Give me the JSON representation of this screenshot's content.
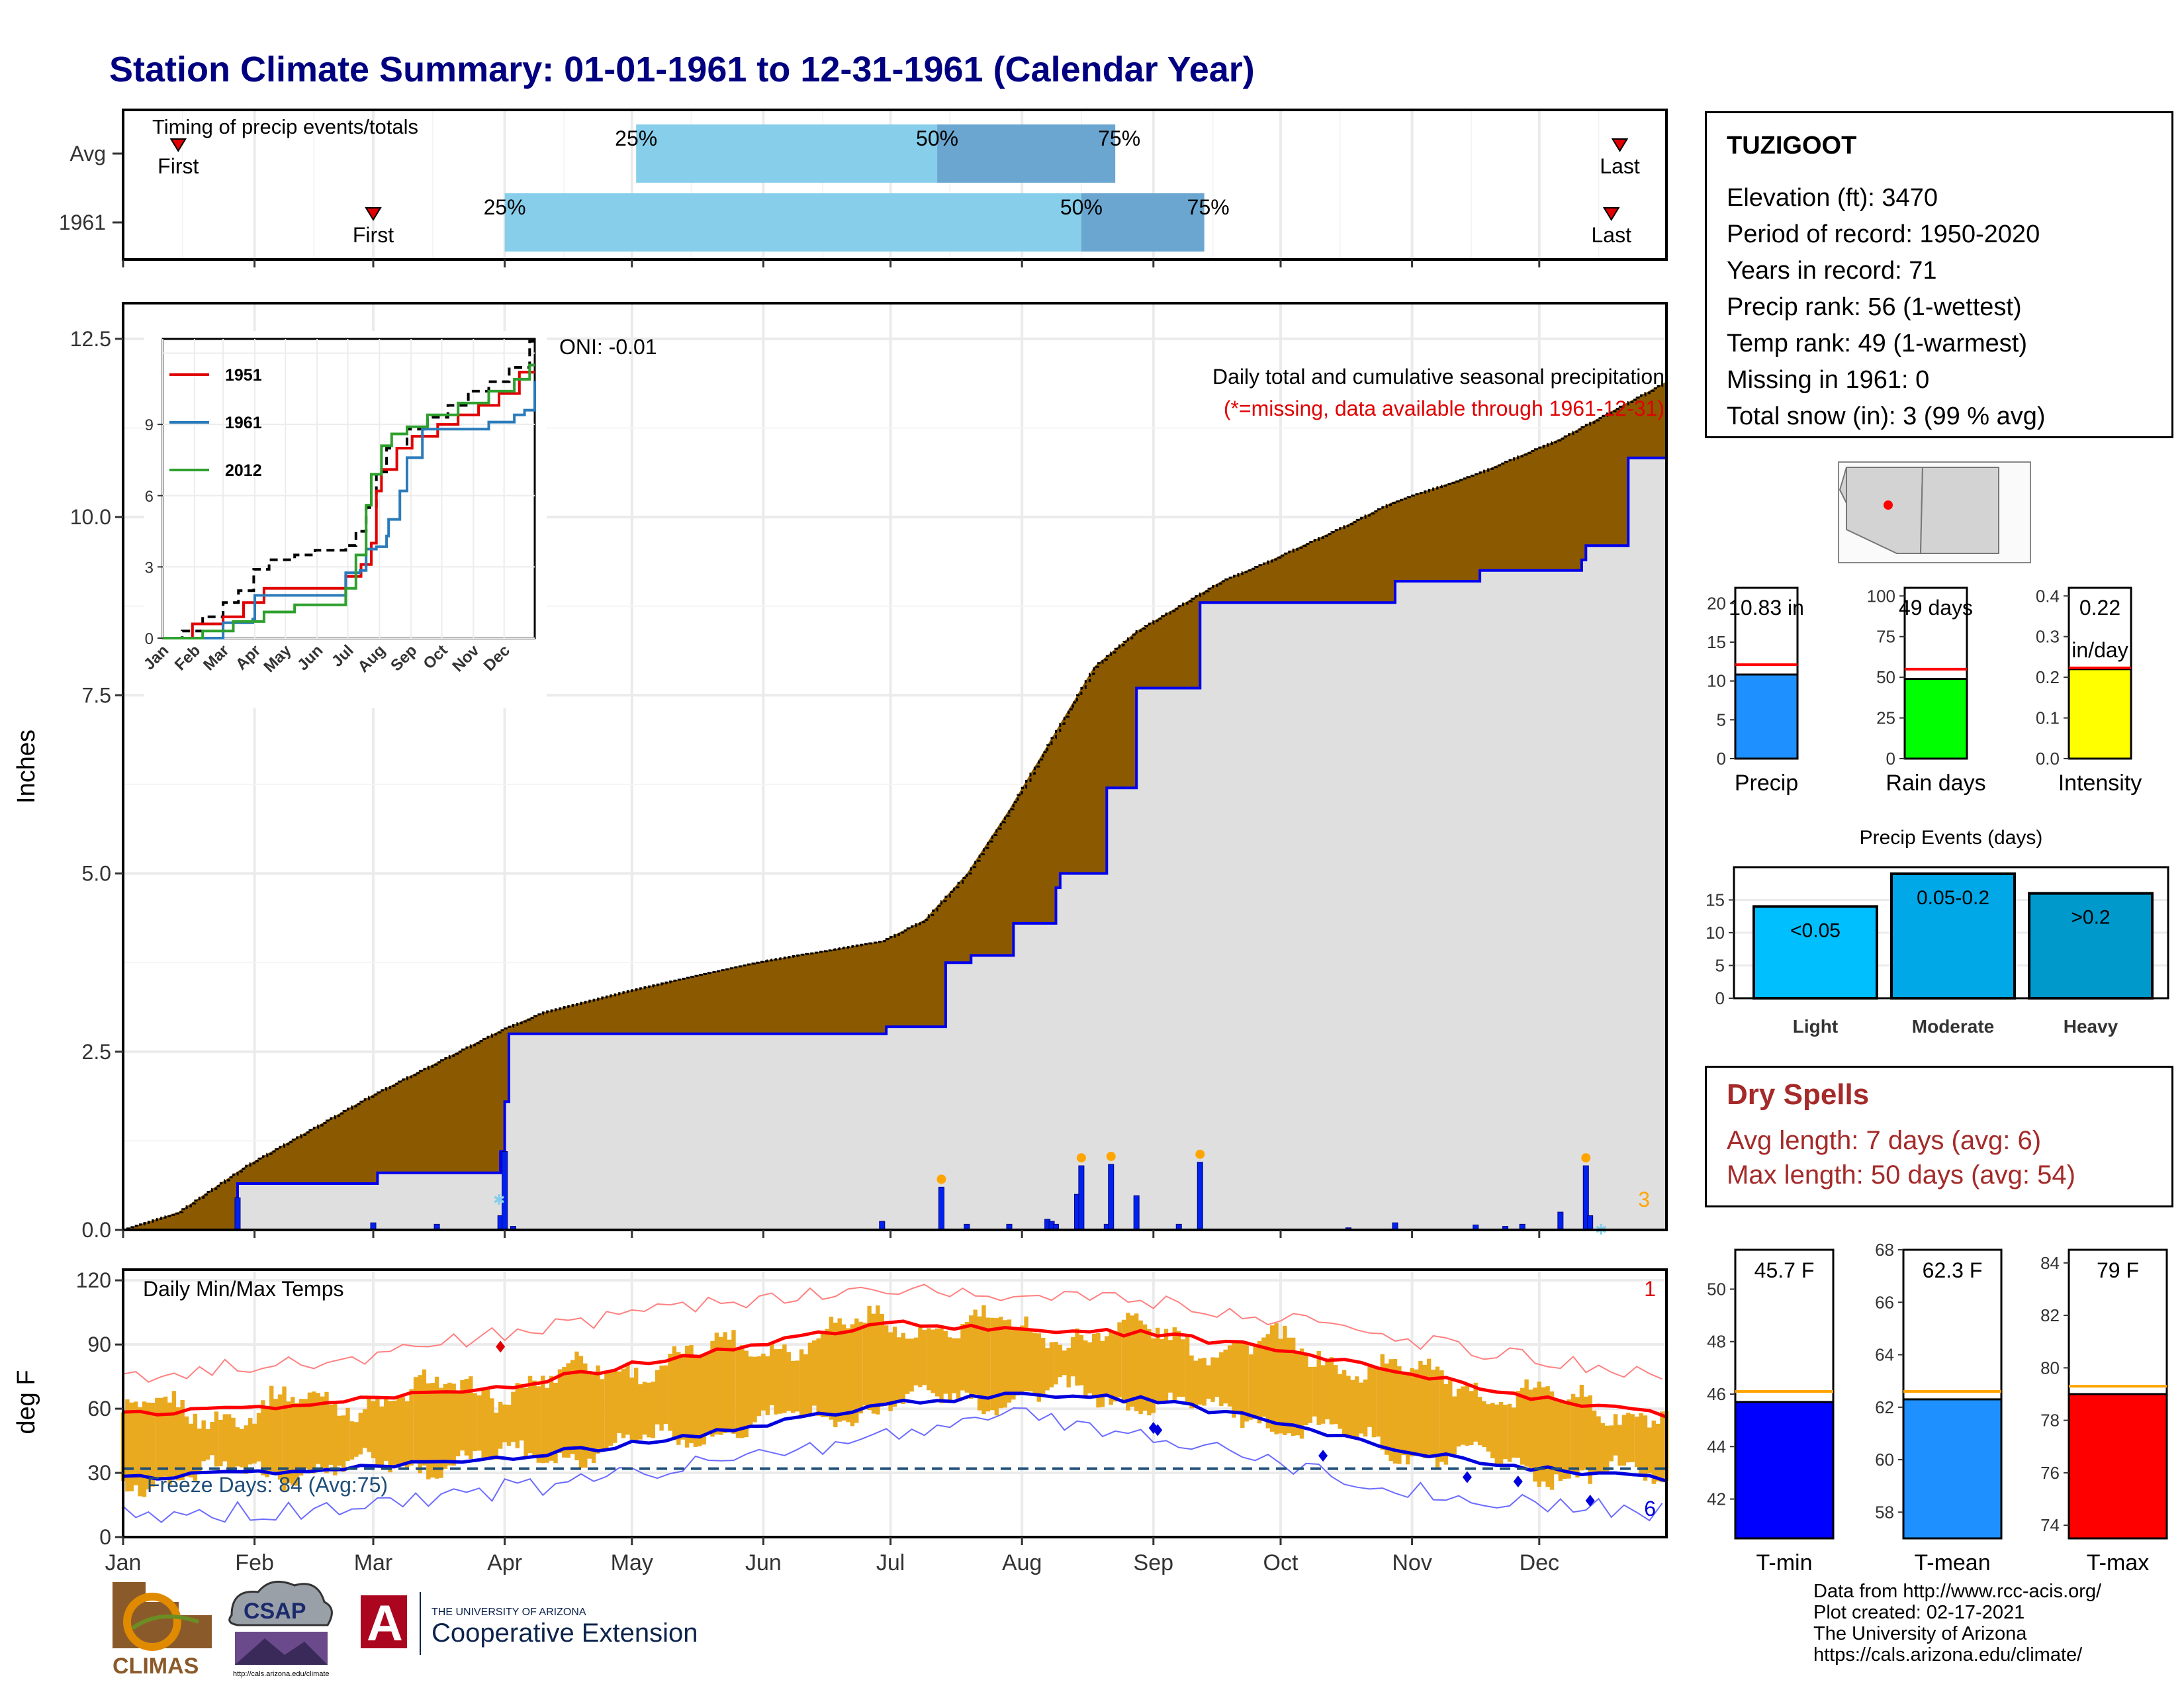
{
  "title": "Station Climate Summary: 01-01-1961 to 12-31-1961 (Calendar Year)",
  "timing": {
    "label": "Timing of precip events/totals",
    "rows": [
      {
        "label": "Avg",
        "first_day": 14,
        "p25_day": 122,
        "p50_day": 193,
        "p75_day": 235,
        "last_day": 354
      },
      {
        "label": "1961",
        "first_day": 60,
        "p25_day": 91,
        "p50_day": 227,
        "p75_day": 256,
        "last_day": 352
      }
    ],
    "text": {
      "first": "First",
      "last": "Last",
      "p25": "25%",
      "p50": "50%",
      "p75": "75%"
    }
  },
  "info": {
    "station": "TUZIGOOT",
    "lines": [
      "Elevation (ft): 3470",
      "Period of record: 1950-2020",
      "Years in record: 71",
      "Precip rank: 56 (1-wettest)",
      "Temp rank: 49 (1-warmest)",
      "Missing in 1961: 0",
      "Total snow (in): 3 (99 % avg)"
    ]
  },
  "precip_chart": {
    "ylabel": "Inches",
    "annotation1": "Daily total and cumulative seasonal precipitation",
    "annotation2": "(*=missing, data available through 1961-12-31)",
    "oni": "ONI: -0.01",
    "snow_count": "3",
    "yticks": [
      "0.0",
      "2.5",
      "5.0",
      "7.5",
      "10.0",
      "12.5"
    ]
  },
  "inset": {
    "xticks": [
      "Jan",
      "Feb",
      "Mar",
      "Apr",
      "May",
      "Jun",
      "Jul",
      "Aug",
      "Sep",
      "Oct",
      "Nov",
      "Dec"
    ],
    "yticks": [
      "0",
      "3",
      "6",
      "9"
    ],
    "legend": [
      "1951",
      "1961",
      "2012"
    ]
  },
  "months": [
    "Jan",
    "Feb",
    "Mar",
    "Apr",
    "May",
    "Jun",
    "Jul",
    "Aug",
    "Sep",
    "Oct",
    "Nov",
    "Dec"
  ],
  "temp_chart": {
    "ylabel": "deg F",
    "label": "Daily Min/Max Temps",
    "freeze": "Freeze Days: 84 (Avg:75)",
    "red_count": "1",
    "blue_count": "6",
    "yticks": [
      "0",
      "30",
      "60",
      "90",
      "120"
    ]
  },
  "bars_small": [
    {
      "name": "Precip",
      "label": "10.83 in",
      "label2": "",
      "value": 10.83,
      "avg": 12.1,
      "max": 22,
      "color": "#1e90ff",
      "ticks": [
        "0",
        "5",
        "10",
        "15",
        "20"
      ]
    },
    {
      "name": "Rain days",
      "label": "49 days",
      "label2": "",
      "value": 49,
      "avg": 55,
      "max": 105,
      "color": "#00ff00",
      "ticks": [
        "0",
        "25",
        "50",
        "75",
        "100"
      ]
    },
    {
      "name": "Intensity",
      "label": "0.22",
      "label2": "in/day",
      "value": 0.22,
      "avg": 0.223,
      "max": 0.42,
      "color": "#ffff00",
      "ticks": [
        "0.0",
        "0.1",
        "0.2",
        "0.3",
        "0.4"
      ]
    }
  ],
  "events": {
    "title": "Precip Events (days)",
    "bars": [
      {
        "name": "Light",
        "label": "<0.05",
        "value": 14,
        "color": "#00bfff"
      },
      {
        "name": "Moderate",
        "label": "0.05-0.2",
        "value": 19,
        "color": "#00a8e8"
      },
      {
        "name": "Heavy",
        "label": ">0.2",
        "value": 16,
        "color": "#0099cc"
      }
    ],
    "ticks": [
      "0",
      "5",
      "10",
      "15"
    ]
  },
  "dry": {
    "title": "Dry Spells",
    "line1": "Avg length: 7 days (avg: 6)",
    "line2": "Max length: 50 days (avg: 54)"
  },
  "temp_bars": [
    {
      "name": "T-min",
      "label": "45.7 F",
      "value": 45.7,
      "avg": 46.1,
      "min": 40.5,
      "max": 51.5,
      "color": "#0000ff",
      "ticks": [
        "42",
        "44",
        "46",
        "48",
        "50"
      ]
    },
    {
      "name": "T-mean",
      "label": "62.3 F",
      "value": 62.3,
      "avg": 62.6,
      "min": 57,
      "max": 68,
      "color": "#1e90ff",
      "ticks": [
        "58",
        "60",
        "62",
        "64",
        "66",
        "68"
      ]
    },
    {
      "name": "T-max",
      "label": "79 F",
      "value": 79,
      "avg": 79.3,
      "min": 73.5,
      "max": 84.5,
      "color": "#ff0000",
      "ticks": [
        "74",
        "76",
        "78",
        "80",
        "82",
        "84"
      ]
    }
  ],
  "footer": [
    "Data from http://www.rcc-acis.org/",
    "Plot created: 02-17-2021",
    "The University of Arizona",
    "https://cals.arizona.edu/climate/"
  ],
  "logos": {
    "climas": "CLIMAS",
    "csap": "CSAP",
    "csap_url": "http://cals.arizona.edu/climate",
    "ua_line1": "THE UNIVERSITY OF ARIZONA",
    "ua_line2": "Cooperative Extension",
    "ua_mark": "A"
  },
  "chart_data": [
    {
      "type": "area",
      "title": "Daily total and cumulative seasonal precipitation",
      "ylabel": "Inches",
      "ylim": [
        0,
        13
      ],
      "x_unit": "day of year",
      "series": [
        {
          "name": "Avg",
          "x": [
            1,
            14,
            30,
            45,
            60,
            75,
            90,
            100,
            120,
            150,
            180,
            190,
            200,
            210,
            220,
            230,
            240,
            250,
            260,
            270,
            290,
            300,
            320,
            340,
            365
          ],
          "values": [
            0,
            0.25,
            0.9,
            1.4,
            1.9,
            2.35,
            2.8,
            3.05,
            3.35,
            3.75,
            4.05,
            4.35,
            5.0,
            5.9,
            6.9,
            7.9,
            8.4,
            8.75,
            9.1,
            9.35,
            9.9,
            10.2,
            10.6,
            11.1,
            11.9
          ]
        },
        {
          "name": "1961",
          "x": [
            1,
            27,
            28,
            60,
            61,
            89,
            90,
            91,
            92,
            180,
            181,
            194,
            195,
            200,
            201,
            210,
            211,
            220,
            221,
            222,
            232,
            233,
            234,
            240,
            241,
            255,
            256,
            300,
            301,
            320,
            321,
            345,
            346,
            355,
            356,
            365
          ],
          "values": [
            0,
            0,
            0.65,
            0.65,
            0.8,
            0.8,
            1.1,
            1.8,
            2.75,
            2.75,
            2.85,
            2.85,
            3.75,
            3.75,
            3.85,
            3.85,
            4.3,
            4.3,
            4.8,
            5.0,
            5.0,
            6.2,
            6.2,
            7.6,
            7.6,
            8.8,
            8.8,
            8.8,
            9.1,
            9.1,
            9.25,
            9.4,
            9.6,
            9.6,
            10.83,
            10.83
          ]
        }
      ],
      "daily_bars": [
        [
          28,
          0.45
        ],
        [
          60,
          0.1
        ],
        [
          75,
          0.08
        ],
        [
          90,
          0.2
        ],
        [
          91,
          1.1
        ],
        [
          93,
          0.05
        ],
        [
          180,
          0.12
        ],
        [
          194,
          0.6
        ],
        [
          200,
          0.08
        ],
        [
          210,
          0.08
        ],
        [
          219,
          0.15
        ],
        [
          220,
          0.12
        ],
        [
          221,
          0.08
        ],
        [
          226,
          0.5
        ],
        [
          227,
          0.9
        ],
        [
          233,
          0.08
        ],
        [
          234,
          0.92
        ],
        [
          240,
          0.48
        ],
        [
          250,
          0.08
        ],
        [
          255,
          0.95
        ],
        [
          290,
          0.03
        ],
        [
          301,
          0.1
        ],
        [
          320,
          0.07
        ],
        [
          327,
          0.05
        ],
        [
          331,
          0.08
        ],
        [
          340,
          0.25
        ],
        [
          346,
          0.9
        ],
        [
          347,
          0.2
        ]
      ]
    },
    {
      "type": "line",
      "title": "Daily Min/Max Temps",
      "ylabel": "deg F",
      "ylim": [
        0,
        120
      ],
      "x_unit": "day of year",
      "series": [
        {
          "name": "Avg max",
          "x": [
            1,
            31,
            59,
            90,
            120,
            151,
            181,
            212,
            243,
            273,
            304,
            334,
            365
          ],
          "values": [
            57,
            60,
            65,
            70,
            80,
            90,
            100,
            97,
            95,
            88,
            77,
            65,
            57
          ]
        },
        {
          "name": "Avg min",
          "x": [
            1,
            31,
            59,
            90,
            120,
            151,
            181,
            212,
            243,
            273,
            304,
            334,
            365
          ],
          "values": [
            27,
            30,
            33,
            37,
            43,
            52,
            62,
            67,
            64,
            54,
            40,
            32,
            27
          ]
        },
        {
          "name": "Record max",
          "x": [
            1,
            31,
            59,
            90,
            120,
            151,
            181,
            212,
            243,
            273,
            304,
            334,
            365
          ],
          "values": [
            75,
            80,
            85,
            95,
            103,
            112,
            116,
            114,
            110,
            102,
            92,
            83,
            76
          ]
        },
        {
          "name": "Record min",
          "x": [
            1,
            31,
            59,
            90,
            120,
            151,
            181,
            212,
            243,
            273,
            304,
            334,
            365
          ],
          "values": [
            10,
            12,
            15,
            22,
            28,
            38,
            48,
            58,
            48,
            36,
            22,
            15,
            12
          ]
        }
      ],
      "freeze_line": 32
    }
  ]
}
